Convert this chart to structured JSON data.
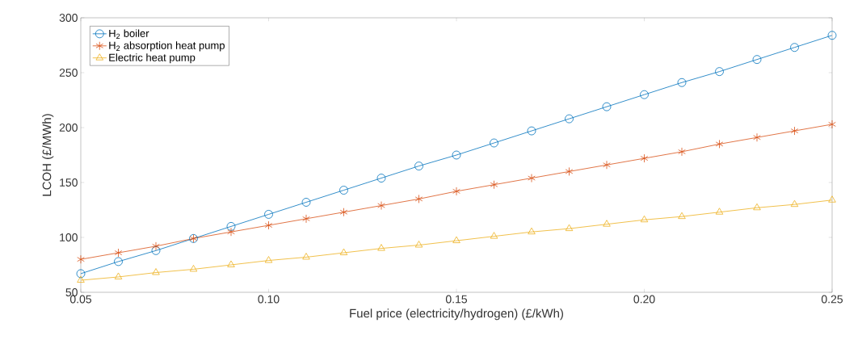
{
  "chart_data": {
    "type": "line",
    "xlabel": "Fuel price (electricity/hydrogen) (£/kWh)",
    "ylabel": "LCOH (£/MWh)",
    "x": [
      0.05,
      0.06,
      0.07,
      0.08,
      0.09,
      0.1,
      0.11,
      0.12,
      0.13,
      0.14,
      0.15,
      0.16,
      0.17,
      0.18,
      0.19,
      0.2,
      0.21,
      0.22,
      0.23,
      0.24,
      0.25
    ],
    "series": [
      {
        "name": "H$_{2}$ boiler",
        "color": "#0072bd",
        "marker": "circle",
        "values": [
          67,
          78,
          88,
          99,
          110,
          121,
          132,
          143,
          154,
          165,
          175,
          186,
          197,
          208,
          219,
          230,
          241,
          251,
          262,
          273,
          284
        ]
      },
      {
        "name": "H$_{2}$ absorption heat pump",
        "color": "#d95319",
        "marker": "cross",
        "values": [
          80,
          86,
          92,
          99,
          105,
          111,
          117,
          123,
          129,
          135,
          142,
          148,
          154,
          160,
          166,
          172,
          178,
          185,
          191,
          197,
          203
        ]
      },
      {
        "name": "Electric heat pump",
        "color": "#edb120",
        "marker": "triangle",
        "values": [
          61,
          64,
          68,
          71,
          75,
          79,
          82,
          86,
          90,
          93,
          97,
          101,
          105,
          108,
          112,
          116,
          119,
          123,
          127,
          130,
          134
        ]
      }
    ],
    "xlim": [
      0.05,
      0.25
    ],
    "ylim": [
      50,
      300
    ],
    "xticks": [
      0.05,
      {
        "value": 0.1,
        "label": "0.10"
      },
      0.15,
      {
        "value": 0.2,
        "label": "0.20"
      },
      0.25
    ],
    "yticks": [
      50,
      100,
      150,
      200,
      250,
      300
    ],
    "grid": false,
    "legend": "top left",
    "line_style": "solid"
  }
}
